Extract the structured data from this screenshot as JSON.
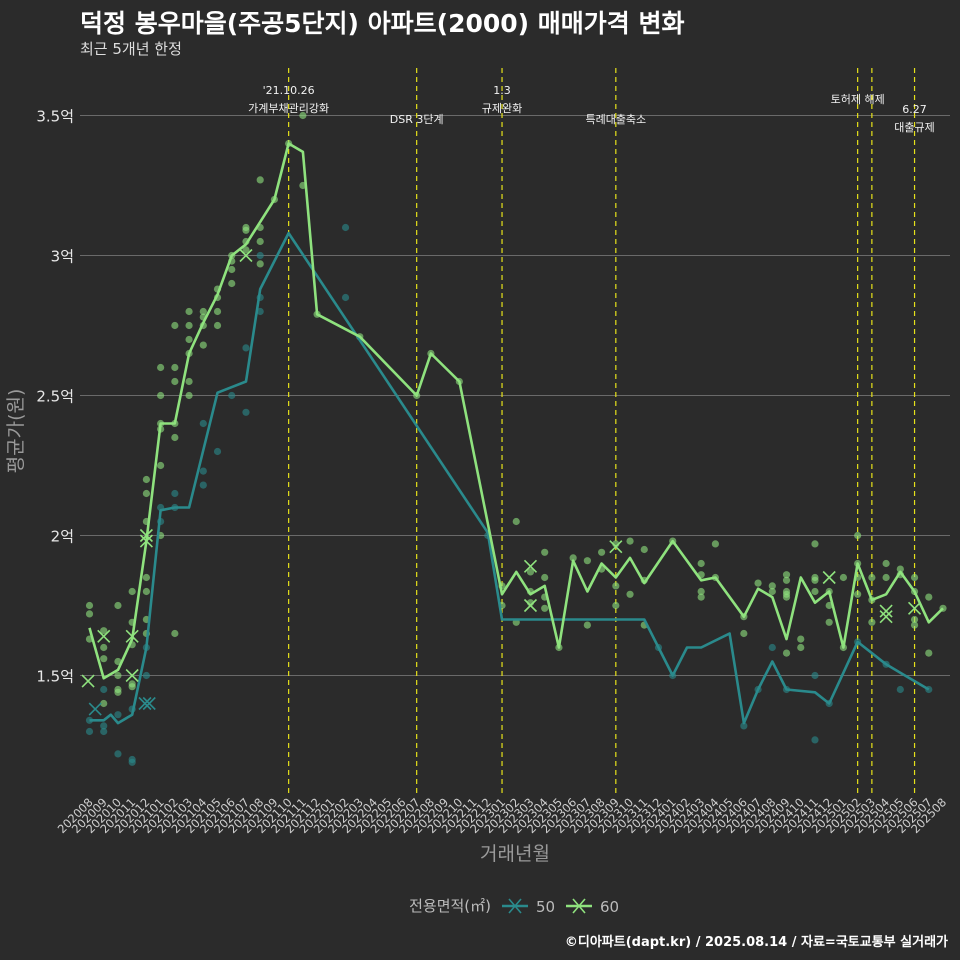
{
  "title": "덕정 봉우마을(주공5단지) 아파트(2000) 매매가격 변화",
  "subtitle": "최근 5개년 한정",
  "caption": "©디아파트(dapt.kr) / 2025.08.14 / 자료=국토교통부 실거래가",
  "chart_data": {
    "type": "line",
    "xlabel": "거래년월",
    "ylabel": "평균가(원)",
    "ylim": [
      1.1,
      3.65
    ],
    "yticks": [
      {
        "value": 1.5,
        "label": "1.5억"
      },
      {
        "value": 2.0,
        "label": "2억"
      },
      {
        "value": 2.5,
        "label": "2.5억"
      },
      {
        "value": 3.0,
        "label": "3억"
      },
      {
        "value": 3.5,
        "label": "3.5억"
      }
    ],
    "months": [
      "202008",
      "202009",
      "202010",
      "202011",
      "202012",
      "202101",
      "202102",
      "202103",
      "202104",
      "202105",
      "202106",
      "202107",
      "202108",
      "202109",
      "202110",
      "202111",
      "202112",
      "202201",
      "202202",
      "202203",
      "202204",
      "202205",
      "202206",
      "202207",
      "202208",
      "202209",
      "202210",
      "202211",
      "202212",
      "202301",
      "202302",
      "202303",
      "202304",
      "202305",
      "202306",
      "202307",
      "202308",
      "202309",
      "202310",
      "202311",
      "202312",
      "202401",
      "202402",
      "202403",
      "202404",
      "202405",
      "202406",
      "202407",
      "202408",
      "202409",
      "202410",
      "202411",
      "202412",
      "202501",
      "202502",
      "202503",
      "202504",
      "202505",
      "202506",
      "202507",
      "202508"
    ],
    "legend": {
      "title": "전용면적(㎡)",
      "position": "bottom"
    },
    "series": [
      {
        "name": "50",
        "color": "#2a8a8c",
        "points": [
          [
            0,
            1.34
          ],
          [
            1,
            1.34
          ],
          [
            1.5,
            1.36
          ],
          [
            2,
            1.33
          ],
          [
            3,
            1.36
          ],
          [
            4,
            1.6
          ],
          [
            5,
            2.09
          ],
          [
            6,
            2.1
          ],
          [
            7,
            2.1
          ],
          [
            9,
            2.51
          ],
          [
            11,
            2.55
          ],
          [
            12,
            2.88
          ],
          [
            14,
            3.08
          ],
          [
            28,
            2.01
          ],
          [
            29,
            1.7
          ],
          [
            37,
            1.7
          ],
          [
            38,
            1.7
          ],
          [
            39,
            1.7
          ],
          [
            40,
            1.6
          ],
          [
            41,
            1.5
          ],
          [
            42,
            1.6
          ],
          [
            43,
            1.6
          ],
          [
            45,
            1.65
          ],
          [
            46,
            1.33
          ],
          [
            47,
            1.45
          ],
          [
            48,
            1.55
          ],
          [
            49,
            1.45
          ],
          [
            51,
            1.44
          ],
          [
            52,
            1.4
          ],
          [
            54,
            1.62
          ],
          [
            56,
            1.54
          ],
          [
            57,
            1.51
          ],
          [
            59,
            1.45
          ]
        ],
        "crosses": [
          [
            0.4,
            1.38
          ],
          [
            3.9,
            1.4
          ],
          [
            4.2,
            1.4
          ]
        ],
        "dots": [
          [
            0,
            1.34
          ],
          [
            0,
            1.3
          ],
          [
            1,
            1.32
          ],
          [
            1,
            1.45
          ],
          [
            1,
            1.3
          ],
          [
            2,
            1.36
          ],
          [
            2,
            1.22
          ],
          [
            3,
            1.19
          ],
          [
            3,
            1.2
          ],
          [
            3,
            1.38
          ],
          [
            4,
            1.5
          ],
          [
            4,
            1.6
          ],
          [
            5,
            2.1
          ],
          [
            5,
            2.05
          ],
          [
            6,
            2.15
          ],
          [
            6,
            2.1
          ],
          [
            8,
            2.18
          ],
          [
            8,
            2.23
          ],
          [
            8,
            2.4
          ],
          [
            9,
            2.3
          ],
          [
            10,
            2.5
          ],
          [
            11,
            2.44
          ],
          [
            11,
            2.67
          ],
          [
            12,
            2.85
          ],
          [
            12,
            2.8
          ],
          [
            12,
            3.0
          ],
          [
            18,
            3.1
          ],
          [
            18,
            2.85
          ],
          [
            28,
            2.0
          ],
          [
            40,
            1.6
          ],
          [
            41,
            1.5
          ],
          [
            46,
            1.32
          ],
          [
            47,
            1.45
          ],
          [
            48,
            1.6
          ],
          [
            49,
            1.45
          ],
          [
            51,
            1.27
          ],
          [
            51,
            1.5
          ],
          [
            52,
            1.4
          ],
          [
            54,
            1.62
          ],
          [
            56,
            1.54
          ],
          [
            57,
            1.45
          ],
          [
            59,
            1.45
          ]
        ]
      },
      {
        "name": "60",
        "color": "#8fe27e",
        "points": [
          [
            0,
            1.67
          ],
          [
            1,
            1.49
          ],
          [
            2,
            1.52
          ],
          [
            3,
            1.63
          ],
          [
            4,
            1.98
          ],
          [
            5,
            2.4
          ],
          [
            6,
            2.4
          ],
          [
            7,
            2.65
          ],
          [
            8,
            2.76
          ],
          [
            9,
            2.86
          ],
          [
            10,
            3.0
          ],
          [
            11,
            3.04
          ],
          [
            12,
            3.12
          ],
          [
            13,
            3.2
          ],
          [
            14,
            3.4
          ],
          [
            15,
            3.37
          ],
          [
            16,
            2.79
          ],
          [
            19,
            2.71
          ],
          [
            23,
            2.5
          ],
          [
            24,
            2.65
          ],
          [
            26,
            2.55
          ],
          [
            29,
            1.79
          ],
          [
            30,
            1.87
          ],
          [
            31,
            1.79
          ],
          [
            32,
            1.82
          ],
          [
            33,
            1.6
          ],
          [
            34,
            1.91
          ],
          [
            35,
            1.8
          ],
          [
            36,
            1.9
          ],
          [
            37,
            1.85
          ],
          [
            38,
            1.92
          ],
          [
            39,
            1.83
          ],
          [
            41,
            1.98
          ],
          [
            43,
            1.84
          ],
          [
            44,
            1.85
          ],
          [
            46,
            1.71
          ],
          [
            47,
            1.81
          ],
          [
            48,
            1.78
          ],
          [
            49,
            1.63
          ],
          [
            50,
            1.85
          ],
          [
            51,
            1.76
          ],
          [
            52,
            1.8
          ],
          [
            53,
            1.6
          ],
          [
            54,
            1.9
          ],
          [
            55,
            1.77
          ],
          [
            56,
            1.79
          ],
          [
            57,
            1.87
          ],
          [
            58,
            1.8
          ],
          [
            59,
            1.69
          ],
          [
            60,
            1.74
          ]
        ],
        "crosses": [
          [
            -0.1,
            1.48
          ],
          [
            1,
            1.64
          ],
          [
            3,
            1.5
          ],
          [
            3,
            1.64
          ],
          [
            4,
            2.0
          ],
          [
            4,
            1.98
          ],
          [
            11,
            3.0
          ],
          [
            31,
            1.75
          ],
          [
            31,
            1.89
          ],
          [
            37,
            1.96
          ],
          [
            52,
            1.85
          ],
          [
            56,
            1.73
          ],
          [
            56,
            1.71
          ],
          [
            58,
            1.74
          ]
        ],
        "dots": [
          [
            0,
            1.75
          ],
          [
            0,
            1.72
          ],
          [
            0,
            1.63
          ],
          [
            1,
            1.66
          ],
          [
            1,
            1.6
          ],
          [
            1,
            1.56
          ],
          [
            1,
            1.4
          ],
          [
            2,
            1.75
          ],
          [
            2,
            1.55
          ],
          [
            2,
            1.5
          ],
          [
            2,
            1.45
          ],
          [
            2,
            1.44
          ],
          [
            3,
            1.8
          ],
          [
            3,
            1.69
          ],
          [
            3,
            1.61
          ],
          [
            3,
            1.46
          ],
          [
            3,
            1.47
          ],
          [
            4,
            2.2
          ],
          [
            4,
            2.15
          ],
          [
            4,
            2.05
          ],
          [
            4,
            1.85
          ],
          [
            4,
            1.8
          ],
          [
            4,
            1.7
          ],
          [
            4,
            1.65
          ],
          [
            5,
            2.6
          ],
          [
            5,
            2.5
          ],
          [
            5,
            2.4
          ],
          [
            5,
            2.38
          ],
          [
            5,
            2.25
          ],
          [
            5,
            2.0
          ],
          [
            6,
            2.75
          ],
          [
            6,
            2.6
          ],
          [
            6,
            2.55
          ],
          [
            6,
            2.4
          ],
          [
            6,
            2.35
          ],
          [
            6,
            1.65
          ],
          [
            7,
            2.8
          ],
          [
            7,
            2.75
          ],
          [
            7,
            2.7
          ],
          [
            7,
            2.65
          ],
          [
            7,
            2.55
          ],
          [
            7,
            2.5
          ],
          [
            8,
            2.8
          ],
          [
            8,
            2.78
          ],
          [
            8,
            2.75
          ],
          [
            8,
            2.68
          ],
          [
            9,
            2.88
          ],
          [
            9,
            2.85
          ],
          [
            9,
            2.8
          ],
          [
            9,
            2.75
          ],
          [
            10,
            3.0
          ],
          [
            10,
            2.98
          ],
          [
            10,
            2.95
          ],
          [
            10,
            2.9
          ],
          [
            11,
            3.1
          ],
          [
            11,
            3.09
          ],
          [
            11,
            3.05
          ],
          [
            11,
            3.02
          ],
          [
            12,
            3.27
          ],
          [
            12,
            3.1
          ],
          [
            12,
            3.05
          ],
          [
            12,
            2.97
          ],
          [
            13,
            3.2
          ],
          [
            14,
            3.4
          ],
          [
            15,
            3.5
          ],
          [
            15,
            3.25
          ],
          [
            16,
            2.79
          ],
          [
            19,
            2.71
          ],
          [
            23,
            2.5
          ],
          [
            24,
            2.65
          ],
          [
            26,
            2.55
          ],
          [
            29,
            1.82
          ],
          [
            29,
            1.75
          ],
          [
            30,
            2.05
          ],
          [
            30,
            1.69
          ],
          [
            31,
            1.87
          ],
          [
            31,
            1.8
          ],
          [
            31,
            1.76
          ],
          [
            32,
            1.94
          ],
          [
            32,
            1.85
          ],
          [
            32,
            1.78
          ],
          [
            32,
            1.74
          ],
          [
            33,
            1.6
          ],
          [
            34,
            1.92
          ],
          [
            35,
            1.91
          ],
          [
            35,
            1.68
          ],
          [
            36,
            1.94
          ],
          [
            36,
            1.88
          ],
          [
            37,
            1.97
          ],
          [
            37,
            1.82
          ],
          [
            37,
            1.75
          ],
          [
            38,
            1.98
          ],
          [
            38,
            1.79
          ],
          [
            39,
            1.95
          ],
          [
            39,
            1.84
          ],
          [
            39,
            1.68
          ],
          [
            41,
            1.98
          ],
          [
            43,
            1.9
          ],
          [
            43,
            1.86
          ],
          [
            43,
            1.8
          ],
          [
            43,
            1.78
          ],
          [
            44,
            1.97
          ],
          [
            44,
            1.85
          ],
          [
            46,
            1.71
          ],
          [
            46,
            1.65
          ],
          [
            47,
            1.83
          ],
          [
            48,
            1.82
          ],
          [
            48,
            1.8
          ],
          [
            49,
            1.86
          ],
          [
            49,
            1.84
          ],
          [
            49,
            1.8
          ],
          [
            49,
            1.79
          ],
          [
            49,
            1.78
          ],
          [
            49,
            1.58
          ],
          [
            50,
            1.63
          ],
          [
            50,
            1.6
          ],
          [
            51,
            1.97
          ],
          [
            51,
            1.85
          ],
          [
            51,
            1.84
          ],
          [
            51,
            1.8
          ],
          [
            52,
            1.8
          ],
          [
            52,
            1.75
          ],
          [
            52,
            1.69
          ],
          [
            53,
            1.85
          ],
          [
            53,
            1.6
          ],
          [
            54,
            2.0
          ],
          [
            54,
            1.9
          ],
          [
            54,
            1.85
          ],
          [
            54,
            1.79
          ],
          [
            55,
            1.85
          ],
          [
            55,
            1.77
          ],
          [
            55,
            1.69
          ],
          [
            56,
            1.9
          ],
          [
            56,
            1.85
          ],
          [
            57,
            1.88
          ],
          [
            57,
            1.86
          ],
          [
            58,
            1.85
          ],
          [
            58,
            1.8
          ],
          [
            58,
            1.7
          ],
          [
            58,
            1.68
          ],
          [
            59,
            1.78
          ],
          [
            59,
            1.58
          ],
          [
            60,
            1.74
          ]
        ]
      }
    ],
    "events": [
      {
        "x": 14,
        "lines": [
          "'21.10.26",
          "가계부채관리강화"
        ],
        "row": "top"
      },
      {
        "x": 23,
        "lines": [
          "DSR 3단계"
        ],
        "row": "low"
      },
      {
        "x": 29,
        "lines": [
          "1.3",
          "규제완화"
        ],
        "row": "top"
      },
      {
        "x": 37,
        "lines": [
          "특례대출축소"
        ],
        "row": "low"
      },
      {
        "x": 54,
        "lines": [
          "토허제 해제"
        ],
        "row": "mid"
      },
      {
        "x": 55,
        "lines": [],
        "row": "mid"
      },
      {
        "x": 58,
        "lines": [
          "6.27",
          "대출규제"
        ],
        "row": "mid2"
      }
    ]
  }
}
